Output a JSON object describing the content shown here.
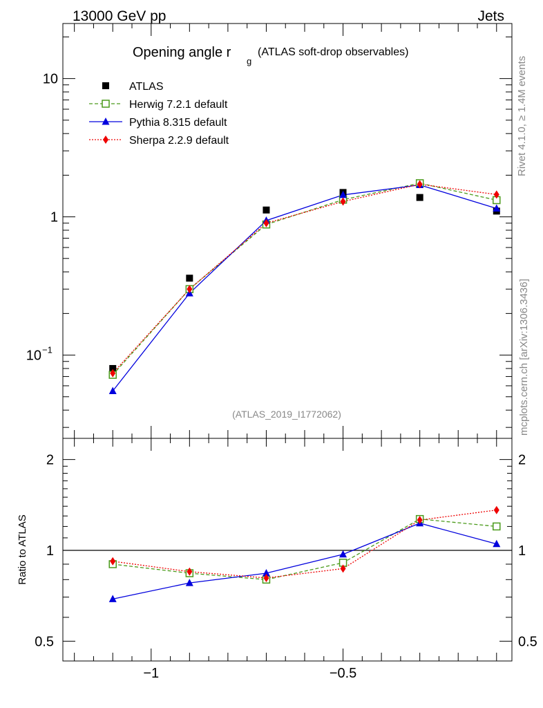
{
  "header": {
    "left": "13000 GeV pp",
    "right": "Jets"
  },
  "side": {
    "rivet": "Rivet 4.1.0, ≥ 1.4M events",
    "mcplots": "mcplots.cern.ch [arXiv:1306.3436]"
  },
  "title": {
    "main": "Opening angle r",
    "sub": "g",
    "paren": "(ATLAS soft-drop observables)"
  },
  "watermark": "(ATLAS_2019_I1772062)",
  "colors": {
    "herwig": "#4a9a1a",
    "pythia": "#0000dd",
    "sherpa": "#ee0000",
    "data": "#000000"
  },
  "chart_data": [
    {
      "type": "scatter",
      "title": "Opening angle r_g (ATLAS soft-drop observables)",
      "xlabel": "",
      "ylabel": "",
      "yscale": "log",
      "xlim": [
        -1.23,
        -0.06
      ],
      "ylim": [
        0.025,
        25
      ],
      "y_ticks": [
        {
          "v": 10,
          "label": "10"
        },
        {
          "v": 1,
          "label": "1"
        },
        {
          "v": 0.1,
          "label": "10",
          "exp": "−1"
        }
      ],
      "x": [
        -1.1,
        -0.9,
        -0.7,
        -0.5,
        -0.3,
        -0.1
      ],
      "series": [
        {
          "name": "ATLAS",
          "key": "atlas",
          "values": [
            0.08,
            0.36,
            1.12,
            1.5,
            1.38,
            1.1
          ]
        },
        {
          "name": "Herwig 7.2.1 default",
          "key": "herwig",
          "values": [
            0.072,
            0.3,
            0.88,
            1.33,
            1.75,
            1.32
          ]
        },
        {
          "name": "Pythia 8.315 default",
          "key": "pythia",
          "values": [
            0.055,
            0.28,
            0.94,
            1.44,
            1.7,
            1.15
          ]
        },
        {
          "name": "Sherpa 2.2.9 default",
          "key": "sherpa",
          "values": [
            0.074,
            0.3,
            0.9,
            1.29,
            1.72,
            1.45
          ]
        }
      ]
    },
    {
      "type": "line",
      "ylabel": "Ratio to ATLAS",
      "yscale": "log",
      "xlim": [
        -1.23,
        -0.06
      ],
      "ylim": [
        0.43,
        2.35
      ],
      "x_ticks": [
        {
          "v": -1,
          "label": "−1"
        },
        {
          "v": -0.5,
          "label": "−0.5"
        }
      ],
      "y_ticks": [
        {
          "v": 2,
          "label": "2"
        },
        {
          "v": 1,
          "label": "1"
        },
        {
          "v": 0.5,
          "label": "0.5"
        }
      ],
      "x": [
        -1.1,
        -0.9,
        -0.7,
        -0.5,
        -0.3,
        -0.1
      ],
      "series": [
        {
          "name": "Herwig 7.2.1 default",
          "key": "herwig",
          "values": [
            0.9,
            0.84,
            0.8,
            0.91,
            1.27,
            1.2
          ]
        },
        {
          "name": "Pythia 8.315 default",
          "key": "pythia",
          "values": [
            0.69,
            0.78,
            0.84,
            0.97,
            1.23,
            1.05
          ]
        },
        {
          "name": "Sherpa 2.2.9 default",
          "key": "sherpa",
          "values": [
            0.92,
            0.85,
            0.81,
            0.87,
            1.26,
            1.36
          ]
        }
      ]
    }
  ]
}
